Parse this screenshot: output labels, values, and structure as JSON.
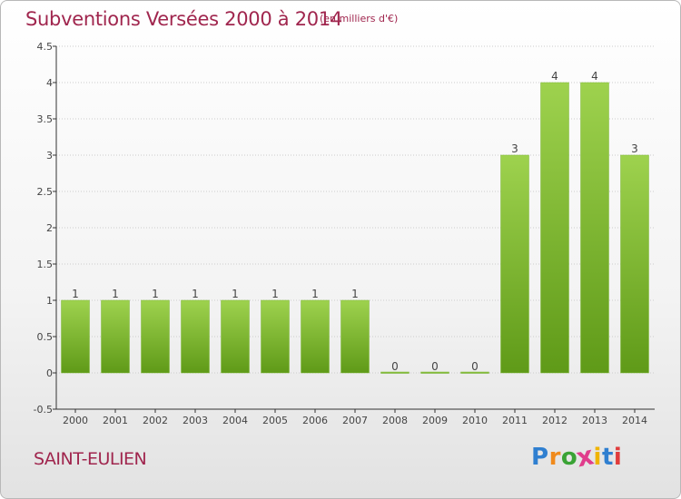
{
  "title": "Subventions Versées 2000 à 2014",
  "subtitle": "(en milliers d'€)",
  "place": "SAINT-EULIEN",
  "logo": {
    "letters": [
      "P",
      "r",
      "o",
      "x",
      "i",
      "t",
      "i"
    ],
    "colors": [
      "#2f7fd0",
      "#f08a1c",
      "#3aa335",
      "#e03c8c",
      "#f0b400",
      "#2f7fd0",
      "#e03c3c"
    ]
  },
  "colors": {
    "bar_top": "#9ed24e",
    "bar_bottom": "#5f9a18",
    "title": "#a0264e",
    "axis": "#333333",
    "grid": "#cccccc"
  },
  "chart_data": {
    "type": "bar",
    "categories": [
      "2000",
      "2001",
      "2002",
      "2003",
      "2004",
      "2005",
      "2006",
      "2007",
      "2008",
      "2009",
      "2010",
      "2011",
      "2012",
      "2013",
      "2014"
    ],
    "values": [
      1,
      1,
      1,
      1,
      1,
      1,
      1,
      1,
      0,
      0,
      0,
      3,
      4,
      4,
      3
    ],
    "value_labels": [
      "1",
      "1",
      "1",
      "1",
      "1",
      "1",
      "1",
      "1",
      "0",
      "0",
      "0",
      "3",
      "4",
      "4",
      "3"
    ],
    "yticks": [
      "-0.5",
      "0",
      "0.5",
      "1",
      "1.5",
      "2",
      "2.5",
      "3",
      "3.5",
      "4",
      "4.5"
    ],
    "ylim": [
      -0.5,
      4.5
    ],
    "grid": true,
    "title": "Subventions Versées 2000 à 2014",
    "xlabel": "",
    "ylabel": ""
  }
}
